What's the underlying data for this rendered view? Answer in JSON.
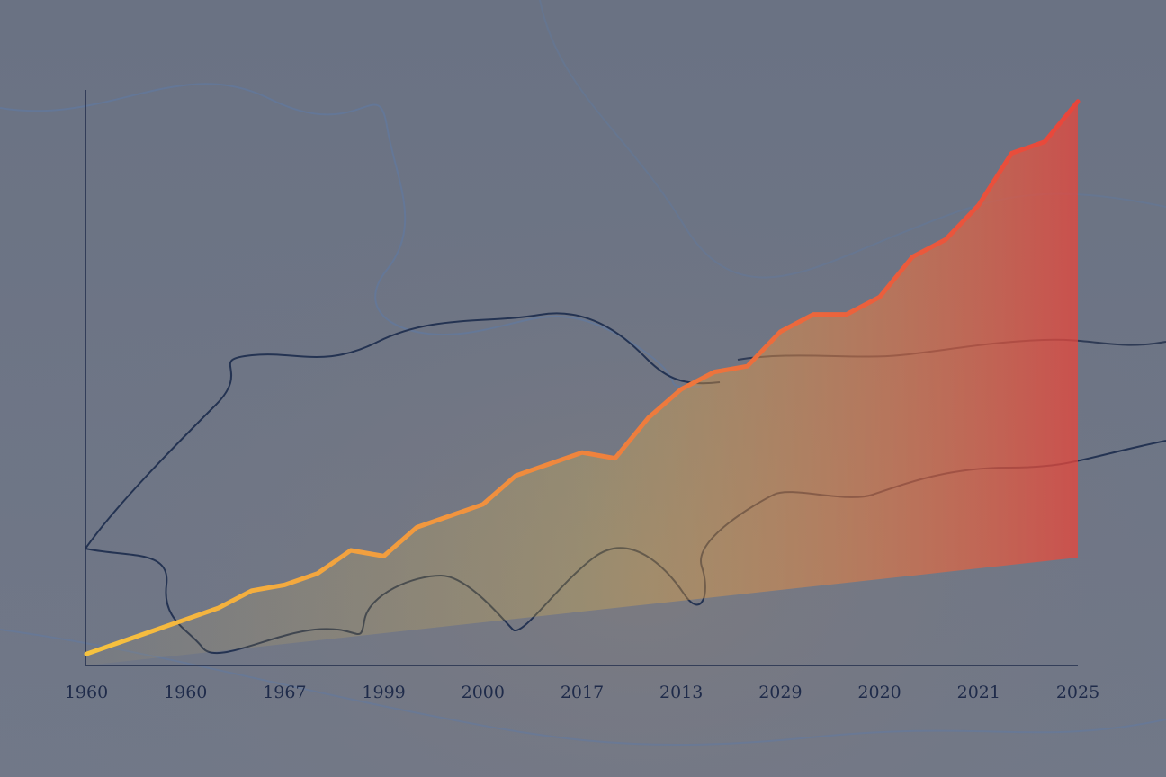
{
  "chart_data": {
    "type": "line",
    "categories": [
      "1960",
      null,
      null,
      "1960",
      null,
      null,
      "1967",
      null,
      null,
      "1999",
      null,
      null,
      "2000",
      null,
      null,
      "2017",
      null,
      null,
      "2013",
      null,
      null,
      "2029",
      null,
      null,
      "2020",
      null,
      null,
      "2021",
      null,
      null,
      "2025"
    ],
    "series": [
      {
        "values": [
          2,
          4,
          6,
          8,
          10,
          13,
          14,
          16,
          20,
          19,
          24,
          26,
          28,
          33,
          35,
          37,
          36,
          43,
          48,
          51,
          52,
          58,
          61,
          61,
          64,
          71,
          74,
          80,
          89,
          91,
          98
        ],
        "color": "#f6c33f",
        "color_end": "#e8453b"
      }
    ],
    "ylim": [
      0,
      100
    ],
    "fill_area": true
  }
}
